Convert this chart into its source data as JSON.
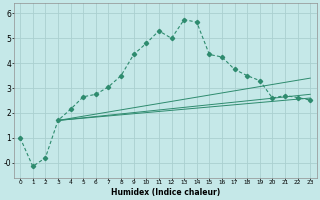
{
  "xlabel": "Humidex (Indice chaleur)",
  "bg_color": "#c5e8e8",
  "grid_color": "#aad0d0",
  "line_color": "#2e8b6e",
  "x_ticks": [
    0,
    1,
    2,
    3,
    4,
    5,
    6,
    7,
    8,
    9,
    10,
    11,
    12,
    13,
    14,
    15,
    16,
    17,
    18,
    19,
    20,
    21,
    22,
    23
  ],
  "y_ticks": [
    0,
    1,
    2,
    3,
    4,
    5,
    6
  ],
  "y_tick_labels": [
    "-0",
    "1",
    "2",
    "3",
    "4",
    "5",
    "6"
  ],
  "ylim": [
    -0.6,
    6.4
  ],
  "xlim": [
    -0.5,
    23.5
  ],
  "curve_x": [
    0,
    1,
    2,
    3,
    4,
    5,
    6,
    7,
    8,
    9,
    10,
    11,
    12,
    13,
    14,
    15,
    16,
    17,
    18,
    19,
    20,
    21,
    22,
    23
  ],
  "curve_y": [
    1.0,
    -0.15,
    0.2,
    1.7,
    2.15,
    2.65,
    2.75,
    3.05,
    3.5,
    4.35,
    4.8,
    5.3,
    5.0,
    5.75,
    5.65,
    4.35,
    4.25,
    3.75,
    3.5,
    3.3,
    2.6,
    2.7,
    2.62,
    2.52
  ],
  "line1_x": [
    3,
    23
  ],
  "line1_y": [
    1.7,
    2.6
  ],
  "line2_x": [
    3,
    23
  ],
  "line2_y": [
    1.7,
    2.75
  ],
  "line3_x": [
    3,
    23
  ],
  "line3_y": [
    1.7,
    3.4
  ]
}
